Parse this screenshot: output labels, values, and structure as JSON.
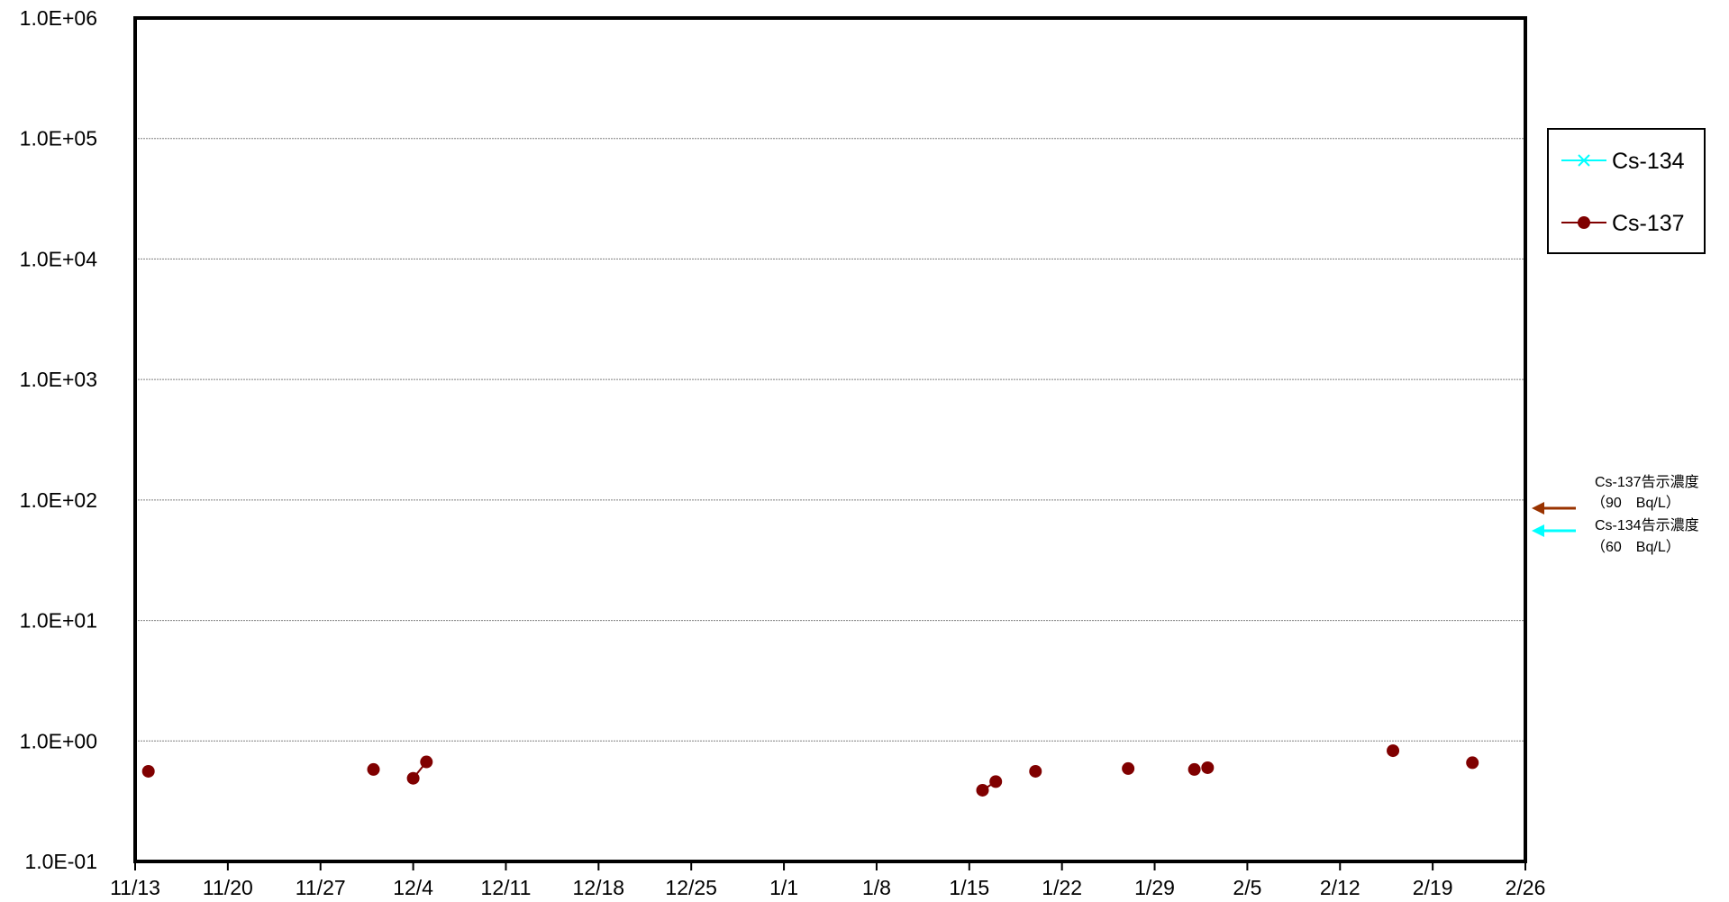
{
  "chart_data": {
    "type": "scatter",
    "y_scale": "log",
    "ylim": [
      0.1,
      1000000
    ],
    "y_ticks": [
      "1.0E-01",
      "1.0E+00",
      "1.0E+01",
      "1.0E+02",
      "1.0E+03",
      "1.0E+04",
      "1.0E+05",
      "1.0E+06"
    ],
    "y_tick_values": [
      0.1,
      1,
      10,
      100,
      1000,
      10000,
      100000,
      1000000
    ],
    "x_ticks": [
      "11/13",
      "11/20",
      "11/27",
      "12/4",
      "12/11",
      "12/18",
      "12/25",
      "1/1",
      "1/8",
      "1/15",
      "1/22",
      "1/29",
      "2/5",
      "2/12",
      "2/19",
      "2/26"
    ],
    "xlim": [
      "11/13",
      "2/26"
    ],
    "grid": "horizontal",
    "legend_position": "right",
    "series": [
      {
        "name": "Cs-134",
        "color": "#00ffff",
        "marker": "x",
        "points": []
      },
      {
        "name": "Cs-137",
        "color": "#800000",
        "marker": "circle",
        "points": [
          {
            "x": "11/14",
            "y": 0.56
          },
          {
            "x": "12/1",
            "y": 0.58
          },
          {
            "x": "12/4",
            "y": 0.49,
            "connect_next": true
          },
          {
            "x": "12/5",
            "y": 0.67
          },
          {
            "x": "1/16",
            "y": 0.39,
            "connect_next": true
          },
          {
            "x": "1/17",
            "y": 0.46
          },
          {
            "x": "1/20",
            "y": 0.56
          },
          {
            "x": "1/27",
            "y": 0.59
          },
          {
            "x": "2/1",
            "y": 0.58
          },
          {
            "x": "2/2",
            "y": 0.6
          },
          {
            "x": "2/16",
            "y": 0.83
          },
          {
            "x": "2/22",
            "y": 0.66
          }
        ]
      }
    ],
    "reference_lines": [
      {
        "label_line1": "Cs-137告示濃度",
        "label_line2": "（90　Bq/L）",
        "value": 90,
        "color": "#993300"
      },
      {
        "label_line1": "Cs-134告示濃度",
        "label_line2": "（60　Bq/L）",
        "value": 60,
        "color": "#00ffff"
      }
    ]
  }
}
